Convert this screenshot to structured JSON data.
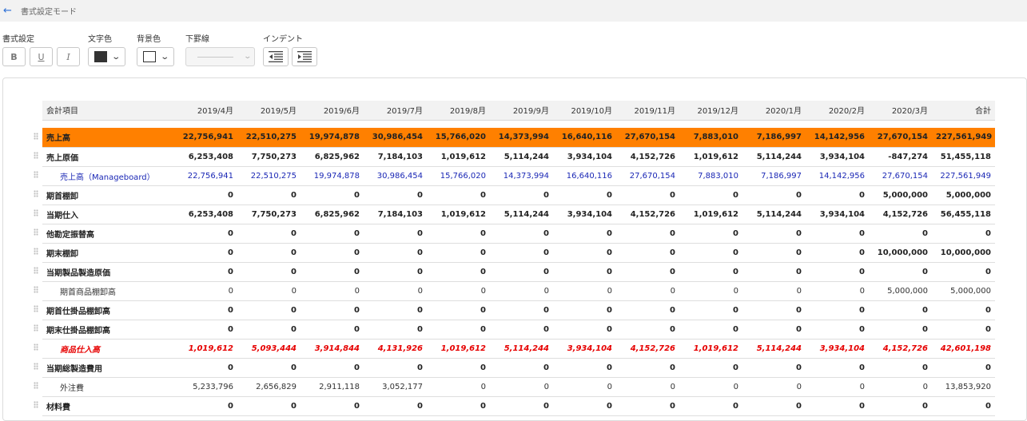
{
  "header": {
    "back_icon": "arrow-left-icon",
    "title": "書式設定モード"
  },
  "toolbar": {
    "format_label": "書式設定",
    "bold": "B",
    "underline": "U",
    "italic": "I",
    "text_color_label": "文字色",
    "text_color": "#333333",
    "bg_color_label": "背景色",
    "bg_color": "#ffffff",
    "border_label": "下罫線",
    "indent_label": "インデント"
  },
  "table": {
    "columns": [
      "会計項目",
      "2019/4月",
      "2019/5月",
      "2019/6月",
      "2019/7月",
      "2019/8月",
      "2019/9月",
      "2019/10月",
      "2019/11月",
      "2019/12月",
      "2020/1月",
      "2020/2月",
      "2020/3月",
      "合計"
    ],
    "rows": [
      {
        "style": "orange",
        "label": "売上高",
        "values": [
          "22,756,941",
          "22,510,275",
          "19,974,878",
          "30,986,454",
          "15,766,020",
          "14,373,994",
          "16,640,116",
          "27,670,154",
          "7,883,010",
          "7,186,997",
          "14,142,956",
          "27,670,154",
          "227,561,949"
        ]
      },
      {
        "style": "bold",
        "label": "売上原価",
        "values": [
          "6,253,408",
          "7,750,273",
          "6,825,962",
          "7,184,103",
          "1,019,612",
          "5,114,244",
          "3,934,104",
          "4,152,726",
          "1,019,612",
          "5,114,244",
          "3,934,104",
          "-847,274",
          "51,455,118"
        ]
      },
      {
        "style": "blue",
        "label": "売上高（Manageboard）",
        "values": [
          "22,756,941",
          "22,510,275",
          "19,974,878",
          "30,986,454",
          "15,766,020",
          "14,373,994",
          "16,640,116",
          "27,670,154",
          "7,883,010",
          "7,186,997",
          "14,142,956",
          "27,670,154",
          "227,561,949"
        ]
      },
      {
        "style": "bold",
        "label": "期首棚卸",
        "values": [
          "0",
          "0",
          "0",
          "0",
          "0",
          "0",
          "0",
          "0",
          "0",
          "0",
          "0",
          "5,000,000",
          "5,000,000"
        ]
      },
      {
        "style": "bold",
        "label": "当期仕入",
        "values": [
          "6,253,408",
          "7,750,273",
          "6,825,962",
          "7,184,103",
          "1,019,612",
          "5,114,244",
          "3,934,104",
          "4,152,726",
          "1,019,612",
          "5,114,244",
          "3,934,104",
          "4,152,726",
          "56,455,118"
        ]
      },
      {
        "style": "bold",
        "label": "他勘定振替高",
        "values": [
          "0",
          "0",
          "0",
          "0",
          "0",
          "0",
          "0",
          "0",
          "0",
          "0",
          "0",
          "0",
          "0"
        ]
      },
      {
        "style": "bold",
        "label": "期末棚卸",
        "values": [
          "0",
          "0",
          "0",
          "0",
          "0",
          "0",
          "0",
          "0",
          "0",
          "0",
          "0",
          "10,000,000",
          "10,000,000"
        ]
      },
      {
        "style": "bold",
        "label": "当期製品製造原価",
        "values": [
          "0",
          "0",
          "0",
          "0",
          "0",
          "0",
          "0",
          "0",
          "0",
          "0",
          "0",
          "0",
          "0"
        ]
      },
      {
        "style": "normal",
        "label": "期首商品棚卸高",
        "values": [
          "0",
          "0",
          "0",
          "0",
          "0",
          "0",
          "0",
          "0",
          "0",
          "0",
          "0",
          "5,000,000",
          "5,000,000"
        ]
      },
      {
        "style": "bold",
        "label": "期首仕掛品棚卸高",
        "values": [
          "0",
          "0",
          "0",
          "0",
          "0",
          "0",
          "0",
          "0",
          "0",
          "0",
          "0",
          "0",
          "0"
        ]
      },
      {
        "style": "bold",
        "label": "期末仕掛品棚卸高",
        "values": [
          "0",
          "0",
          "0",
          "0",
          "0",
          "0",
          "0",
          "0",
          "0",
          "0",
          "0",
          "0",
          "0"
        ]
      },
      {
        "style": "red",
        "label": "商品仕入高",
        "values": [
          "1,019,612",
          "5,093,444",
          "3,914,844",
          "4,131,926",
          "1,019,612",
          "5,114,244",
          "3,934,104",
          "4,152,726",
          "1,019,612",
          "5,114,244",
          "3,934,104",
          "4,152,726",
          "42,601,198"
        ]
      },
      {
        "style": "bold",
        "label": "当期総製造費用",
        "values": [
          "0",
          "0",
          "0",
          "0",
          "0",
          "0",
          "0",
          "0",
          "0",
          "0",
          "0",
          "0",
          "0"
        ]
      },
      {
        "style": "normal",
        "label": "外注費",
        "values": [
          "5,233,796",
          "2,656,829",
          "2,911,118",
          "3,052,177",
          "0",
          "0",
          "0",
          "0",
          "0",
          "0",
          "0",
          "0",
          "13,853,920"
        ]
      },
      {
        "style": "bold",
        "label": "材料費",
        "values": [
          "0",
          "0",
          "0",
          "0",
          "0",
          "0",
          "0",
          "0",
          "0",
          "0",
          "0",
          "0",
          "0"
        ]
      }
    ]
  }
}
